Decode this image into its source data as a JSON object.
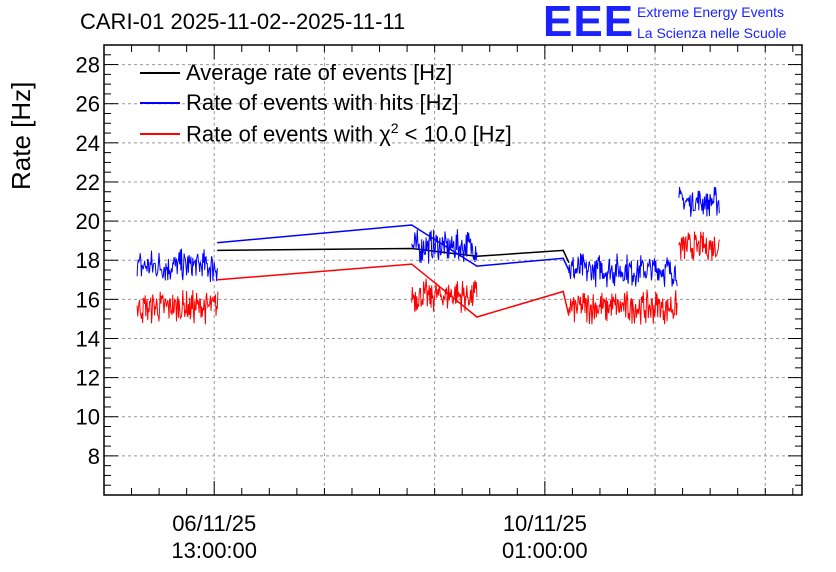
{
  "chart_data": {
    "type": "line",
    "title": "CARI-01 2025-11-02--2025-11-11",
    "xlabel": "",
    "ylabel": "Rate [Hz]",
    "x_unit": "hours since 2025-11-06 13:00:00",
    "xlim": [
      -12.0,
      64.0
    ],
    "ylim": [
      6,
      29
    ],
    "yticks": [
      8,
      10,
      12,
      14,
      16,
      18,
      20,
      22,
      24,
      26,
      28
    ],
    "xticks": [
      {
        "x": 0,
        "date": "06/11/25",
        "time": "13:00:00"
      },
      {
        "x": 36,
        "date": "10/11/25",
        "time": "01:00:00"
      }
    ],
    "grid": true,
    "legend_position": "top-left",
    "segments": [
      {
        "x_start": -8.4,
        "x_end": 0.4,
        "avg": 18.5,
        "hits": 17.7,
        "chi2": 15.6,
        "noise": 0.9
      },
      {
        "x_start": 21.5,
        "x_end": 28.6,
        "avg": 18.6,
        "hits": 18.7,
        "chi2": 16.2,
        "noise": 0.9
      },
      {
        "x_start": 38.6,
        "x_end": 50.4,
        "avg": 17.8,
        "hits": 17.5,
        "chi2": 15.6,
        "noise": 0.9
      },
      {
        "x_start": 50.6,
        "x_end": 55.0,
        "avg": 20.7,
        "hits": 21.0,
        "chi2": 18.7,
        "noise": 0.8
      }
    ],
    "series": [
      {
        "name": "Average rate of events [Hz]",
        "color": "#000000",
        "values": [
          {
            "x": 0.4,
            "y": 18.5
          },
          {
            "x": 21.5,
            "y": 18.6
          },
          {
            "x": 28.6,
            "y": 18.2
          },
          {
            "x": 38.0,
            "y": 18.5
          },
          {
            "x": 38.6,
            "y": 17.9
          }
        ]
      },
      {
        "name": "Rate of events with hits [Hz]",
        "color": "#0000ff",
        "values": [
          {
            "x": 0.4,
            "y": 18.9
          },
          {
            "x": 21.5,
            "y": 19.8
          },
          {
            "x": 28.6,
            "y": 17.7
          },
          {
            "x": 38.0,
            "y": 18.1
          },
          {
            "x": 38.6,
            "y": 17.5
          }
        ]
      },
      {
        "name": "Rate of events with χ² < 10.0 [Hz]",
        "color": "#ff0000",
        "values": [
          {
            "x": 0.4,
            "y": 17.0
          },
          {
            "x": 21.5,
            "y": 17.8
          },
          {
            "x": 28.6,
            "y": 15.1
          },
          {
            "x": 38.0,
            "y": 16.4
          },
          {
            "x": 38.6,
            "y": 15.2
          }
        ]
      }
    ]
  },
  "legend": {
    "avg_label": "Average rate of events [Hz]",
    "hits_label": "Rate of events with hits [Hz]",
    "chi2_label_prefix": "Rate of events with χ",
    "chi2_label_sup": "2",
    "chi2_label_suffix": " < 10.0 [Hz]"
  },
  "logo": {
    "mark": "EEE",
    "line1": "Extreme Energy Events",
    "line2": "La Scienza nelle Scuole",
    "color": "#1a22ff"
  }
}
